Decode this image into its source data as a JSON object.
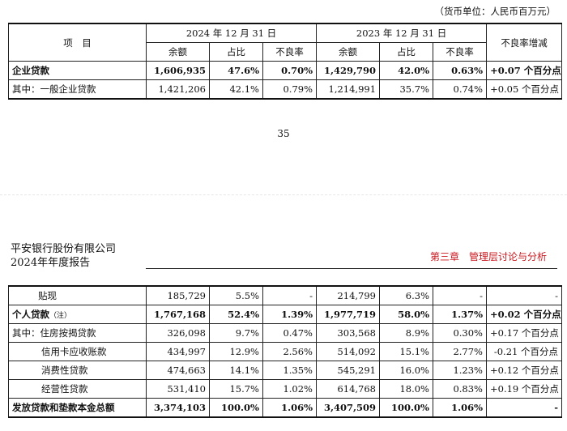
{
  "unit_note": "（货币单位：人民币百万元）",
  "page_number": "35",
  "header": {
    "company": "平安银行股份有限公司",
    "report": "2024年年度报告",
    "chapter": "第三章　管理层讨论与分析"
  },
  "table_top": {
    "col_item": "项　目",
    "period_2024": "2024 年 12 月 31 日",
    "period_2023": "2023 年 12 月 31 日",
    "col_change": "不良率增减",
    "sub_balance": "余额",
    "sub_share": "占比",
    "sub_npl": "不良率",
    "rows": [
      {
        "name": "企业贷款",
        "b24": "1,606,935",
        "s24": "47.6%",
        "n24": "0.70%",
        "b23": "1,429,790",
        "s23": "42.0%",
        "n23": "0.63%",
        "chg": "+0.07 个百分点"
      },
      {
        "name": "其中：一般企业贷款",
        "b24": "1,421,206",
        "s24": "42.1%",
        "n24": "0.79%",
        "b23": "1,214,991",
        "s23": "35.7%",
        "n23": "0.74%",
        "chg": "+0.05 个百分点"
      }
    ]
  },
  "table_bottom": {
    "rows": [
      {
        "name": "贴现",
        "b24": "185,729",
        "s24": "5.5%",
        "n24": "-",
        "b23": "214,799",
        "s23": "6.3%",
        "n23": "-",
        "chg": "-"
      },
      {
        "name": "个人贷款",
        "note": "（注）",
        "b24": "1,767,168",
        "s24": "52.4%",
        "n24": "1.39%",
        "b23": "1,977,719",
        "s23": "58.0%",
        "n23": "1.37%",
        "chg": "+0.02 个百分点"
      },
      {
        "name": "其中：住房按揭贷款",
        "b24": "326,098",
        "s24": "9.7%",
        "n24": "0.47%",
        "b23": "303,568",
        "s23": "8.9%",
        "n23": "0.30%",
        "chg": "+0.17 个百分点"
      },
      {
        "name": "信用卡应收账款",
        "b24": "434,997",
        "s24": "12.9%",
        "n24": "2.56%",
        "b23": "514,092",
        "s23": "15.1%",
        "n23": "2.77%",
        "chg": "-0.21 个百分点"
      },
      {
        "name": "消费性贷款",
        "b24": "474,663",
        "s24": "14.1%",
        "n24": "1.35%",
        "b23": "545,291",
        "s23": "16.0%",
        "n23": "1.23%",
        "chg": "+0.12 个百分点"
      },
      {
        "name": "经营性贷款",
        "b24": "531,410",
        "s24": "15.7%",
        "n24": "1.02%",
        "b23": "614,768",
        "s23": "18.0%",
        "n23": "0.83%",
        "chg": "+0.19 个百分点"
      },
      {
        "name": "发放贷款和垫款本金总额",
        "b24": "3,374,103",
        "s24": "100.0%",
        "n24": "1.06%",
        "b23": "3,407,509",
        "s23": "100.0%",
        "n23": "1.06%",
        "chg": "-"
      }
    ]
  }
}
